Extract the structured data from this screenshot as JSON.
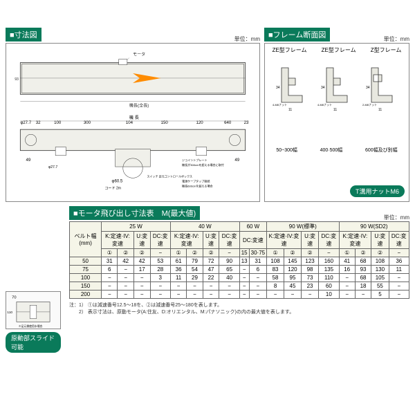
{
  "sections": {
    "dimension": {
      "title": "■寸法図",
      "unit": "単位：mm"
    },
    "crosssection": {
      "title": "■フレーム断面図",
      "unit": "単位：mm"
    },
    "motortable": {
      "title": "■モータ飛び出し寸法表　M(最大値)",
      "unit": "単位：mm"
    }
  },
  "frames": {
    "f1": "ZE型フレーム",
    "f2": "ZE型フレーム",
    "f3": "Z型フレーム",
    "b1": "50~300幅",
    "b2": "400·500幅",
    "b3": "600幅及び別幅",
    "tnut": "T溝用ナットM6"
  },
  "slide_label": "原動部スライド可能",
  "table": {
    "belt_header": "ベルト幅\n(mm)",
    "groups": [
      "25 W",
      "40 W",
      "60 W",
      "90 W(標準)",
      "90 W(SD2)"
    ],
    "subheaders": {
      "kiv": "K:定速·IV:変速",
      "u": "U:変速",
      "dc": "DC:変速",
      "c1": "①",
      "c2": "②",
      "c15": "15",
      "c3075": "30·75"
    },
    "rows": [
      {
        "belt": "50",
        "v": [
          "31",
          "42",
          "42",
          "53",
          "61",
          "79",
          "72",
          "90",
          "13",
          "31",
          "108",
          "145",
          "123",
          "160",
          "41",
          "68",
          "108",
          "36"
        ]
      },
      {
        "belt": "75",
        "v": [
          "6",
          "−",
          "17",
          "28",
          "36",
          "54",
          "47",
          "65",
          "−",
          "6",
          "83",
          "120",
          "98",
          "135",
          "16",
          "93",
          "130",
          "11"
        ]
      },
      {
        "belt": "100",
        "v": [
          "−",
          "−",
          "−",
          "3",
          "11",
          "29",
          "22",
          "40",
          "−",
          "−",
          "58",
          "95",
          "73",
          "110",
          "−",
          "68",
          "105",
          "−"
        ]
      },
      {
        "belt": "150",
        "v": [
          "−",
          "−",
          "−",
          "−",
          "−",
          "−",
          "−",
          "−",
          "−",
          "−",
          "8",
          "45",
          "23",
          "60",
          "−",
          "18",
          "55",
          "−"
        ]
      },
      {
        "belt": "200",
        "v": [
          "−",
          "−",
          "−",
          "−",
          "−",
          "−",
          "−",
          "−",
          "−",
          "−",
          "−",
          "−",
          "−",
          "10",
          "−",
          "−",
          "5",
          "−"
        ]
      }
    ],
    "note": "注：1） ①は減速番号12.5～18を、②は減速番号25～180を表します。\n　　2） 表示寸法は、原動モータ(A:住友、D:オリエンタル、M:パナソニック)の内の最大値を表します。"
  },
  "dims": {
    "d1": "φ27.7",
    "d2": "32",
    "d3": "100",
    "d4": "300",
    "d5": "104",
    "d6": "150",
    "d7": "120",
    "d8": "640",
    "d9": "23",
    "d10": "23",
    "d11": "70",
    "d12": "110",
    "d13": "φ60.5",
    "d14": "φ27.7",
    "d15": "49",
    "d16": "49",
    "d17": "コード 2m",
    "d18": "機長",
    "d19": "モータ",
    "d20": "機長(全長)",
    "d21": "機 長"
  },
  "colors": {
    "green": "#0a7a5a",
    "orange": "#ff8c00",
    "line": "#333"
  }
}
